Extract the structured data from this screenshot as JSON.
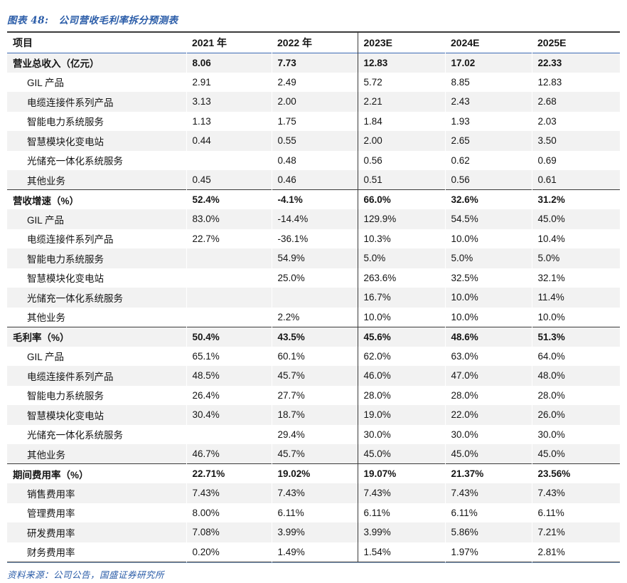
{
  "figure": {
    "caption_prefix": "图表 48:",
    "caption_text": "公司营收毛利率拆分预测表",
    "source_note": "资料来源：公司公告，国盛证券研究所"
  },
  "colors": {
    "caption_blue": "#2A5CA8",
    "header_underline_blue": "#3C6BB5",
    "bottom_rule_blue": "#95B3D7",
    "section_border_dark": "#3b3b3b",
    "stripe_gray": "#F2F2F2",
    "text": "#151515"
  },
  "chart_data": {
    "type": "table",
    "title": "公司营收毛利率拆分预测表",
    "columns": [
      "项目",
      "2021 年",
      "2022 年",
      "2023E",
      "2024E",
      "2025E"
    ],
    "rows": [
      {
        "label": "营业总收入（亿元）",
        "section": true,
        "indent": false,
        "sep": false,
        "values": [
          "8.06",
          "7.73",
          "12.83",
          "17.02",
          "22.33"
        ]
      },
      {
        "label": "GIL 产品",
        "section": false,
        "indent": true,
        "sep": false,
        "values": [
          "2.91",
          "2.49",
          "5.72",
          "8.85",
          "12.83"
        ]
      },
      {
        "label": "电缆连接件系列产品",
        "section": false,
        "indent": true,
        "sep": false,
        "values": [
          "3.13",
          "2.00",
          "2.21",
          "2.43",
          "2.68"
        ]
      },
      {
        "label": "智能电力系统服务",
        "section": false,
        "indent": true,
        "sep": false,
        "values": [
          "1.13",
          "1.75",
          "1.84",
          "1.93",
          "2.03"
        ]
      },
      {
        "label": "智慧模块化变电站",
        "section": false,
        "indent": true,
        "sep": false,
        "values": [
          "0.44",
          "0.55",
          "2.00",
          "2.65",
          "3.50"
        ]
      },
      {
        "label": "光储充一体化系统服务",
        "section": false,
        "indent": true,
        "sep": false,
        "values": [
          "",
          "0.48",
          "0.56",
          "0.62",
          "0.69"
        ]
      },
      {
        "label": "其他业务",
        "section": false,
        "indent": true,
        "sep": false,
        "values": [
          "0.45",
          "0.46",
          "0.51",
          "0.56",
          "0.61"
        ]
      },
      {
        "label": "营收增速（%）",
        "section": true,
        "indent": false,
        "sep": true,
        "values": [
          "52.4%",
          "-4.1%",
          "66.0%",
          "32.6%",
          "31.2%"
        ]
      },
      {
        "label": "GIL 产品",
        "section": false,
        "indent": true,
        "sep": false,
        "values": [
          "83.0%",
          "-14.4%",
          "129.9%",
          "54.5%",
          "45.0%"
        ]
      },
      {
        "label": "电缆连接件系列产品",
        "section": false,
        "indent": true,
        "sep": false,
        "values": [
          "22.7%",
          "-36.1%",
          "10.3%",
          "10.0%",
          "10.4%"
        ]
      },
      {
        "label": "智能电力系统服务",
        "section": false,
        "indent": true,
        "sep": false,
        "values": [
          "",
          "54.9%",
          "5.0%",
          "5.0%",
          "5.0%"
        ]
      },
      {
        "label": "智慧模块化变电站",
        "section": false,
        "indent": true,
        "sep": false,
        "values": [
          "",
          "25.0%",
          "263.6%",
          "32.5%",
          "32.1%"
        ]
      },
      {
        "label": "光储充一体化系统服务",
        "section": false,
        "indent": true,
        "sep": false,
        "values": [
          "",
          "",
          "16.7%",
          "10.0%",
          "11.4%"
        ]
      },
      {
        "label": "其他业务",
        "section": false,
        "indent": true,
        "sep": false,
        "values": [
          "",
          "2.2%",
          "10.0%",
          "10.0%",
          "10.0%"
        ]
      },
      {
        "label": "毛利率（%）",
        "section": true,
        "indent": false,
        "sep": true,
        "values": [
          "50.4%",
          "43.5%",
          "45.6%",
          "48.6%",
          "51.3%"
        ]
      },
      {
        "label": "GIL 产品",
        "section": false,
        "indent": true,
        "sep": false,
        "values": [
          "65.1%",
          "60.1%",
          "62.0%",
          "63.0%",
          "64.0%"
        ]
      },
      {
        "label": "电缆连接件系列产品",
        "section": false,
        "indent": true,
        "sep": false,
        "values": [
          "48.5%",
          "45.7%",
          "46.0%",
          "47.0%",
          "48.0%"
        ]
      },
      {
        "label": "智能电力系统服务",
        "section": false,
        "indent": true,
        "sep": false,
        "values": [
          "26.4%",
          "27.7%",
          "28.0%",
          "28.0%",
          "28.0%"
        ]
      },
      {
        "label": "智慧模块化变电站",
        "section": false,
        "indent": true,
        "sep": false,
        "values": [
          "30.4%",
          "18.7%",
          "19.0%",
          "22.0%",
          "26.0%"
        ]
      },
      {
        "label": "光储充一体化系统服务",
        "section": false,
        "indent": true,
        "sep": false,
        "values": [
          "",
          "29.4%",
          "30.0%",
          "30.0%",
          "30.0%"
        ]
      },
      {
        "label": "其他业务",
        "section": false,
        "indent": true,
        "sep": false,
        "values": [
          "46.7%",
          "45.7%",
          "45.0%",
          "45.0%",
          "45.0%"
        ]
      },
      {
        "label": "期间费用率（%）",
        "section": true,
        "indent": false,
        "sep": true,
        "values": [
          "22.71%",
          "19.02%",
          "19.07%",
          "21.37%",
          "23.56%"
        ]
      },
      {
        "label": "销售费用率",
        "section": false,
        "indent": true,
        "sep": false,
        "values": [
          "7.43%",
          "7.43%",
          "7.43%",
          "7.43%",
          "7.43%"
        ]
      },
      {
        "label": "管理费用率",
        "section": false,
        "indent": true,
        "sep": false,
        "values": [
          "8.00%",
          "6.11%",
          "6.11%",
          "6.11%",
          "6.11%"
        ]
      },
      {
        "label": "研发费用率",
        "section": false,
        "indent": true,
        "sep": false,
        "values": [
          "7.08%",
          "3.99%",
          "3.99%",
          "5.86%",
          "7.21%"
        ]
      },
      {
        "label": "财务费用率",
        "section": false,
        "indent": true,
        "sep": false,
        "values": [
          "0.20%",
          "1.49%",
          "1.54%",
          "1.97%",
          "2.81%"
        ]
      }
    ]
  }
}
